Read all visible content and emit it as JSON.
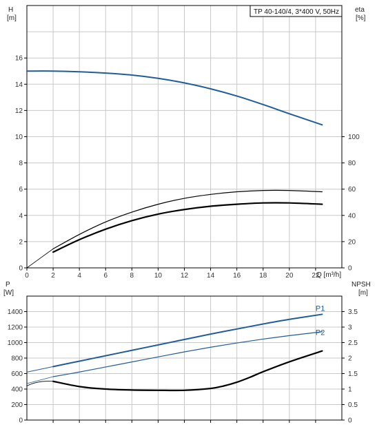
{
  "chart_data": [
    {
      "type": "line",
      "title": "TP 40-140/4, 3*400 V, 50Hz",
      "xlabel": "Q [m³/h]",
      "xlim": [
        0,
        24
      ],
      "x_ticks": [
        0,
        2,
        4,
        6,
        8,
        10,
        12,
        14,
        16,
        18,
        20,
        22
      ],
      "grid": true,
      "left_axis": {
        "label_top": "H",
        "label_unit": "[m]",
        "ylim": [
          0,
          20
        ],
        "ticks": [
          0,
          2,
          4,
          6,
          8,
          10,
          12,
          14,
          16
        ]
      },
      "right_axis": {
        "label_top": "eta",
        "label_unit": "[%]",
        "ylim": [
          0,
          200
        ],
        "ticks": [
          0,
          20,
          40,
          60,
          80,
          100
        ]
      },
      "series": [
        {
          "axis": "left",
          "color": "#1f5c99",
          "stroke": 2,
          "x": [
            0,
            2,
            4,
            6,
            8,
            10,
            12,
            14,
            16,
            18,
            20,
            22.5
          ],
          "y": [
            15.0,
            15.0,
            14.95,
            14.85,
            14.7,
            14.45,
            14.1,
            13.65,
            13.1,
            12.45,
            11.75,
            10.9
          ]
        },
        {
          "axis": "right",
          "color": "#000000",
          "stroke": 1.2,
          "x": [
            2,
            4,
            6,
            8,
            10,
            12,
            14,
            16,
            18,
            20,
            22.5
          ],
          "y": [
            14.5,
            25.5,
            35.0,
            42.5,
            48.5,
            53.0,
            56.0,
            58.0,
            59.0,
            59.0,
            58.0
          ]
        },
        {
          "axis": "right",
          "color": "#000000",
          "stroke": 2.2,
          "x": [
            2,
            4,
            6,
            8,
            10,
            12,
            14,
            16,
            18,
            20,
            22.5
          ],
          "y": [
            12.0,
            21.5,
            29.5,
            36.0,
            41.0,
            44.5,
            47.0,
            48.5,
            49.5,
            49.5,
            48.5
          ]
        }
      ]
    },
    {
      "type": "line",
      "xlim": [
        0,
        24
      ],
      "grid": true,
      "left_axis": {
        "label_top": "P",
        "label_unit": "[W]",
        "ylim": [
          0,
          1600
        ],
        "ticks": [
          0,
          200,
          400,
          600,
          800,
          1000,
          1200,
          1400
        ]
      },
      "right_axis": {
        "label_top": "NPSH",
        "label_unit": "[m]",
        "ylim": [
          0,
          4
        ],
        "ticks": [
          0.0,
          0.5,
          1.0,
          1.5,
          2.0,
          2.5,
          3.0,
          3.5
        ]
      },
      "series": [
        {
          "name": "P1",
          "axis": "left",
          "color": "#1f5c99",
          "stroke": 2,
          "x": [
            2,
            4,
            6,
            8,
            10,
            12,
            14,
            16,
            18,
            20,
            22.5
          ],
          "y": [
            690,
            760,
            830,
            900,
            970,
            1040,
            1110,
            1175,
            1240,
            1300,
            1365
          ]
        },
        {
          "name": "P2",
          "axis": "left",
          "color": "#1f5c99",
          "stroke": 1.2,
          "x": [
            2,
            4,
            6,
            8,
            10,
            12,
            14,
            16,
            18,
            20,
            22.5
          ],
          "y": [
            560,
            620,
            685,
            750,
            815,
            880,
            940,
            995,
            1045,
            1090,
            1140
          ]
        },
        {
          "axis": "right",
          "color": "#000000",
          "stroke": 2.2,
          "x": [
            2,
            4,
            6,
            8,
            10,
            12,
            14,
            15,
            16,
            17,
            18,
            20,
            22.5
          ],
          "y": [
            1.25,
            1.08,
            1.0,
            0.97,
            0.96,
            0.96,
            1.02,
            1.1,
            1.22,
            1.38,
            1.56,
            1.88,
            2.23
          ]
        }
      ],
      "annotations": [
        {
          "text": "P1",
          "x": 22.0,
          "y": 1410
        },
        {
          "text": "P2",
          "x": 22.0,
          "y": 1100
        }
      ]
    }
  ]
}
